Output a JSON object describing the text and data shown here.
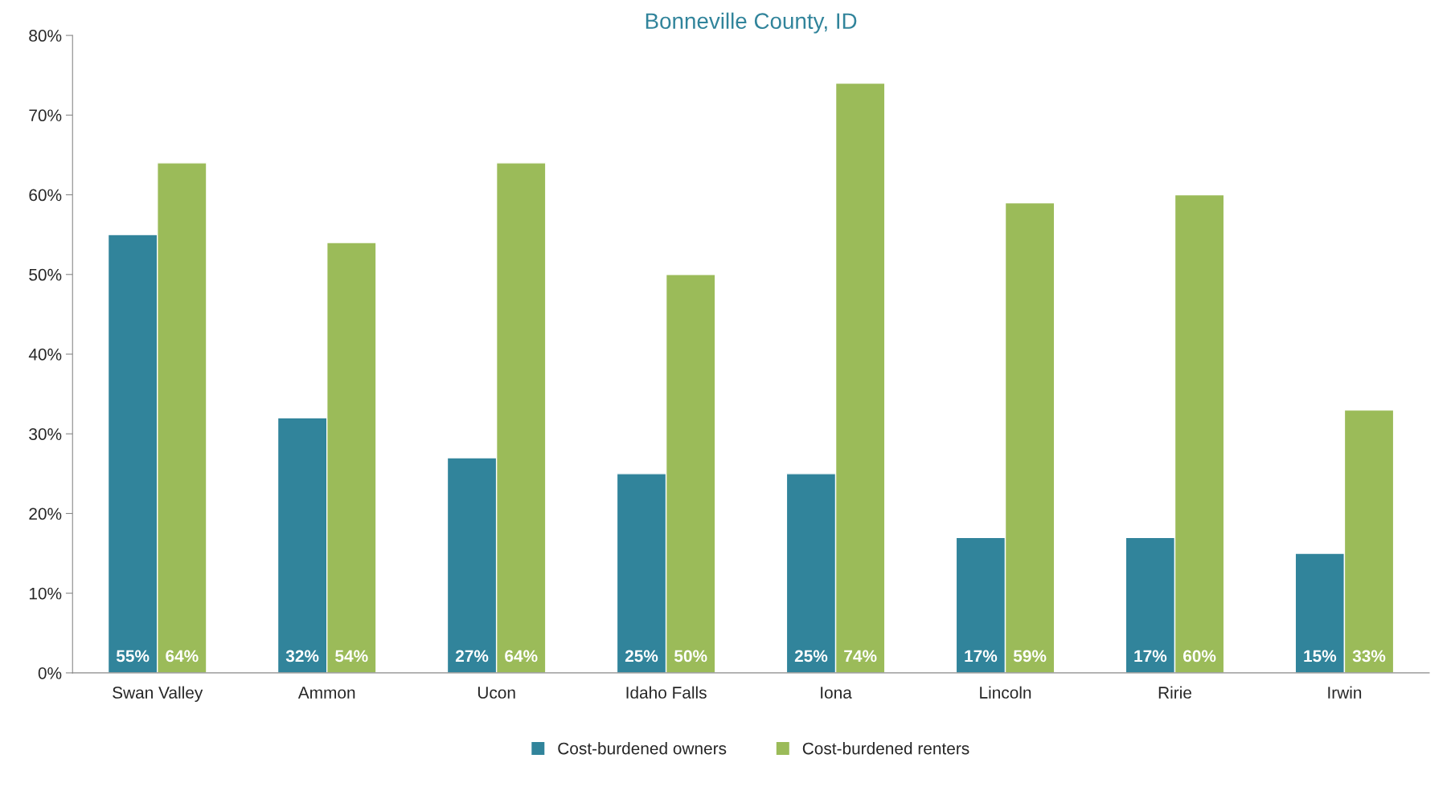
{
  "chart_data": {
    "type": "bar",
    "title": "Bonneville County, ID",
    "categories": [
      "Swan Valley",
      "Ammon",
      "Ucon",
      "Idaho Falls",
      "Iona",
      "Lincoln",
      "Ririe",
      "Irwin"
    ],
    "series": [
      {
        "name": "Cost-burdened owners",
        "color": "#31849b",
        "values": [
          55,
          32,
          27,
          25,
          25,
          17,
          17,
          15
        ],
        "value_labels": [
          "55%",
          "32%",
          "27%",
          "25%",
          "25%",
          "17%",
          "17%",
          "15%"
        ]
      },
      {
        "name": "Cost-burdened renters",
        "color": "#9bbb59",
        "values": [
          64,
          54,
          64,
          50,
          74,
          59,
          60,
          33
        ],
        "value_labels": [
          "64%",
          "54%",
          "64%",
          "50%",
          "74%",
          "59%",
          "60%",
          "33%"
        ]
      }
    ],
    "ylim": [
      0,
      80
    ],
    "yticks": [
      {
        "value": 0,
        "label": "0%"
      },
      {
        "value": 10,
        "label": "10%"
      },
      {
        "value": 20,
        "label": "20%"
      },
      {
        "value": 30,
        "label": "30%"
      },
      {
        "value": 40,
        "label": "40%"
      },
      {
        "value": 50,
        "label": "50%"
      },
      {
        "value": 60,
        "label": "60%"
      },
      {
        "value": 70,
        "label": "70%"
      },
      {
        "value": 80,
        "label": "80%"
      }
    ],
    "grid": false,
    "legend": "bottom"
  }
}
